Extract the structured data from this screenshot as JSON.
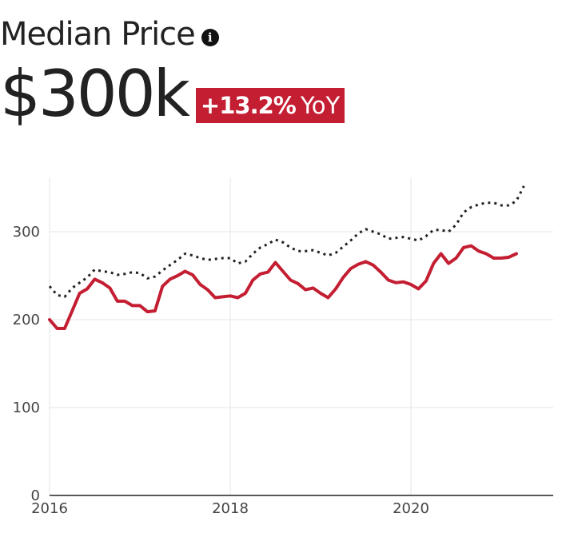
{
  "header": {
    "title": "Median Price",
    "info_icon": "info-icon",
    "value": "$300k",
    "change": "+13.2%",
    "change_suffix": "YoY"
  },
  "colors": {
    "primary_series": "#c41e32",
    "comparison_series": "#222222",
    "badge": "#c41e32",
    "grid": "#e6e6e6"
  },
  "chart_data": {
    "type": "line",
    "title": "",
    "xlabel": "",
    "ylabel": "",
    "xlim": [
      2016,
      2021.8
    ],
    "ylim": [
      0,
      360
    ],
    "y_ticks": [
      "0",
      "100",
      "200",
      "300"
    ],
    "y_tick_values": [
      0,
      100,
      200,
      300
    ],
    "x_ticks": [
      "2016",
      "2018",
      "2020"
    ],
    "x_tick_values": [
      2016,
      2018,
      2020
    ],
    "grid": true,
    "legend": "none",
    "series": [
      {
        "style": "solid",
        "x": [
          2016.0,
          2016.083,
          2016.167,
          2016.25,
          2016.333,
          2016.417,
          2016.5,
          2016.583,
          2016.667,
          2016.75,
          2016.833,
          2016.917,
          2017.0,
          2017.083,
          2017.167,
          2017.25,
          2017.333,
          2017.417,
          2017.5,
          2017.583,
          2017.667,
          2017.75,
          2017.833,
          2017.917,
          2018.0,
          2018.083,
          2018.167,
          2018.25,
          2018.333,
          2018.417,
          2018.5,
          2018.583,
          2018.667,
          2018.75,
          2018.833,
          2018.917,
          2019.0,
          2019.083,
          2019.167,
          2019.25,
          2019.333,
          2019.417,
          2019.5,
          2019.583,
          2019.667,
          2019.75,
          2019.833,
          2019.917,
          2020.0,
          2020.083,
          2020.167,
          2020.25,
          2020.333,
          2020.417,
          2020.5,
          2020.583,
          2020.667,
          2020.75,
          2020.833,
          2020.917,
          2021.0,
          2021.083,
          2021.167
        ],
        "values": [
          200,
          190,
          190,
          210,
          230,
          235,
          246,
          242,
          236,
          221,
          221,
          216,
          216,
          209,
          210,
          238,
          246,
          250,
          255,
          251,
          240,
          234,
          225,
          226,
          227,
          225,
          230,
          245,
          252,
          254,
          265,
          255,
          245,
          241,
          234,
          236,
          230,
          225,
          235,
          248,
          258,
          263,
          266,
          262,
          254,
          245,
          242,
          243,
          240,
          235,
          244,
          264,
          275,
          264,
          270,
          282,
          284,
          278,
          275,
          270,
          270,
          271,
          275
        ]
      },
      {
        "style": "dotted",
        "x": [
          2016.0,
          2016.083,
          2016.167,
          2016.25,
          2016.333,
          2016.417,
          2016.5,
          2016.583,
          2016.667,
          2016.75,
          2016.833,
          2016.917,
          2017.0,
          2017.083,
          2017.167,
          2017.25,
          2017.333,
          2017.417,
          2017.5,
          2017.583,
          2017.667,
          2017.75,
          2017.833,
          2017.917,
          2018.0,
          2018.083,
          2018.167,
          2018.25,
          2018.333,
          2018.417,
          2018.5,
          2018.583,
          2018.667,
          2018.75,
          2018.833,
          2018.917,
          2019.0,
          2019.083,
          2019.167,
          2019.25,
          2019.333,
          2019.417,
          2019.5,
          2019.583,
          2019.667,
          2019.75,
          2019.833,
          2019.917,
          2020.0,
          2020.083,
          2020.167,
          2020.25,
          2020.333,
          2020.417,
          2020.5,
          2020.583,
          2020.667,
          2020.75,
          2020.833,
          2020.917,
          2021.0,
          2021.083,
          2021.167,
          2021.25
        ],
        "values": [
          238,
          228,
          226,
          236,
          242,
          248,
          257,
          255,
          254,
          251,
          252,
          254,
          253,
          247,
          249,
          256,
          262,
          268,
          275,
          273,
          270,
          268,
          269,
          270,
          270,
          264,
          266,
          275,
          282,
          286,
          291,
          288,
          282,
          278,
          278,
          279,
          276,
          273,
          276,
          283,
          290,
          298,
          303,
          300,
          297,
          292,
          293,
          294,
          292,
          290,
          295,
          302,
          302,
          300,
          308,
          322,
          328,
          331,
          333,
          333,
          330,
          330,
          335,
          352
        ]
      }
    ]
  }
}
